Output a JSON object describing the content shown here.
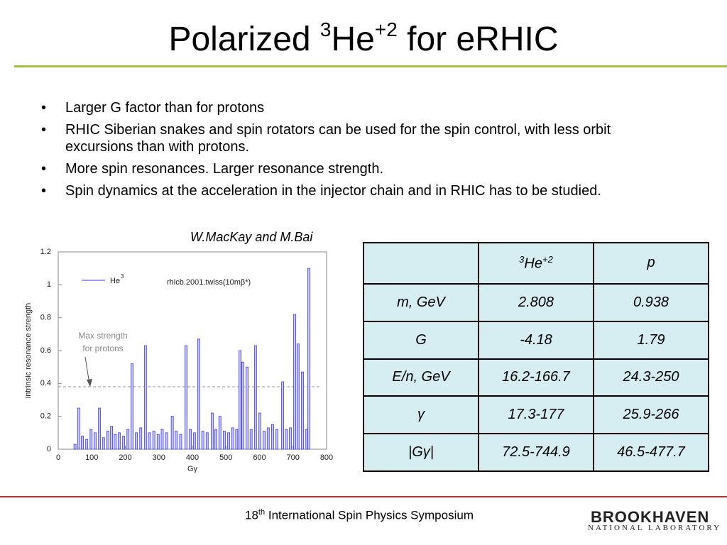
{
  "title": {
    "pre": "Polarized",
    "mass": "3",
    "name": "He",
    "charge": "+2",
    "post": "for eRHIC"
  },
  "bullets": [
    "Larger G factor than for protons",
    "RHIC Siberian snakes and spin rotators can be used for the spin control, with less orbit excursions than with protons.",
    "More spin resonances. Larger resonance strength.",
    "Spin dynamics at the acceleration in the injector chain and in RHIC has to be studied."
  ],
  "citation": "W.MacKay and M.Bai",
  "table": {
    "header": {
      "he_mass": "3",
      "he_name": "He",
      "he_charge": "+2",
      "p": "p"
    },
    "rows": [
      [
        "m, GeV",
        "2.808",
        "0.938"
      ],
      [
        "G",
        "-4.18",
        "1.79"
      ],
      [
        "E/n, GeV",
        "16.2-166.7",
        "24.3-250"
      ],
      [
        "γ",
        "17.3-177",
        "25.9-266"
      ],
      [
        "|Gγ|",
        "72.5-744.9",
        "46.5-477.7"
      ]
    ]
  },
  "footer": {
    "ordinal": "18",
    "ordinal_suffix": "th",
    "text": "International Spin Physics Symposium",
    "logo_top": "BROOKHAVEN",
    "logo_bottom": "NATIONAL LABORATORY"
  },
  "chart_data": {
    "type": "bar",
    "x_label": "Gγ",
    "y_label": "intrinsic resonance strength",
    "annotation": "rhicb.2001.twiss(10mβ*)",
    "xlim": [
      0,
      800
    ],
    "ylim": [
      0,
      1.2
    ],
    "xticks": [
      0,
      100,
      200,
      300,
      400,
      500,
      600,
      700,
      800
    ],
    "yticks": [
      0,
      0.2,
      0.4,
      0.6,
      0.8,
      1,
      1.2
    ],
    "reference_line": {
      "value": 0.38,
      "label": [
        "Max strength",
        "for protons"
      ]
    },
    "series": [
      {
        "name": "He",
        "name_sup": "3",
        "color": "#3a3af0",
        "x": [
          50,
          61,
          72,
          85,
          98,
          110,
          123,
          135,
          148,
          159,
          170,
          182,
          195,
          208,
          220,
          233,
          246,
          260,
          272,
          285,
          298,
          310,
          323,
          340,
          352,
          365,
          381,
          394,
          406,
          419,
          431,
          444,
          459,
          470,
          482,
          495,
          508,
          520,
          532,
          542,
          550,
          563,
          575,
          588,
          601,
          614,
          626,
          639,
          652,
          669,
          680,
          692,
          705,
          715,
          728,
          740,
          747
        ],
        "values": [
          0.03,
          0.25,
          0.08,
          0.06,
          0.12,
          0.1,
          0.25,
          0.07,
          0.11,
          0.14,
          0.09,
          0.1,
          0.08,
          0.12,
          0.52,
          0.1,
          0.13,
          0.63,
          0.1,
          0.11,
          0.09,
          0.12,
          0.1,
          0.2,
          0.11,
          0.09,
          0.63,
          0.12,
          0.1,
          0.67,
          0.11,
          0.1,
          0.22,
          0.12,
          0.2,
          0.11,
          0.1,
          0.13,
          0.12,
          0.6,
          0.53,
          0.5,
          0.12,
          0.63,
          0.22,
          0.11,
          0.13,
          0.15,
          0.12,
          0.41,
          0.12,
          0.13,
          0.82,
          0.64,
          0.47,
          0.12,
          1.1
        ]
      }
    ]
  }
}
